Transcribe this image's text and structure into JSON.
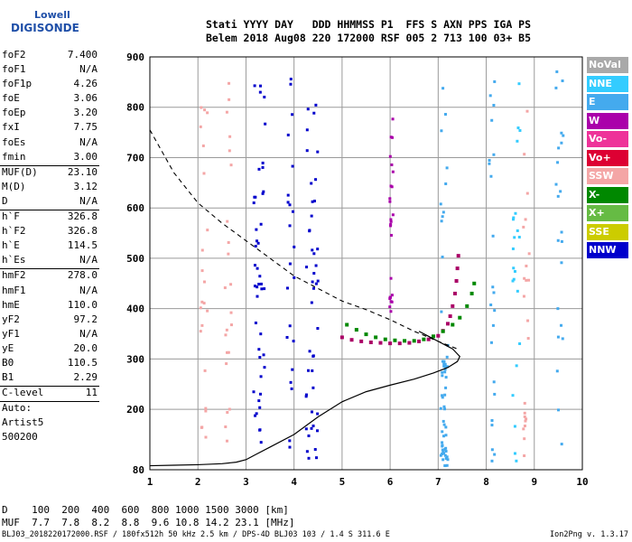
{
  "logo": {
    "line1": "Lowell",
    "line2": "DIGISONDE"
  },
  "header": {
    "line1": "Stati YYYY DAY   DDD HHMMSS P1  FFS S AXN PPS IGA PS",
    "line2": "Belem 2018 Aug08 220 172000 RSF 005 2 713 100 03+ B5"
  },
  "params": [
    {
      "label": "foF2",
      "value": "7.400",
      "sep": false
    },
    {
      "label": "foF1",
      "value": "N/A",
      "sep": false
    },
    {
      "label": "foF1p",
      "value": "4.26",
      "sep": false
    },
    {
      "label": "foE",
      "value": "3.06",
      "sep": false
    },
    {
      "label": "foEp",
      "value": "3.20",
      "sep": false
    },
    {
      "label": "fxI",
      "value": "7.75",
      "sep": false
    },
    {
      "label": "foEs",
      "value": "N/A",
      "sep": false
    },
    {
      "label": "fmin",
      "value": "3.00",
      "sep": true
    },
    {
      "label": "MUF(D)",
      "value": "23.10",
      "sep": false
    },
    {
      "label": "M(D)",
      "value": "3.12",
      "sep": false
    },
    {
      "label": "D",
      "value": "N/A",
      "sep": true
    },
    {
      "label": "h`F",
      "value": "326.8",
      "sep": false
    },
    {
      "label": "h`F2",
      "value": "326.8",
      "sep": false
    },
    {
      "label": "h`E",
      "value": "114.5",
      "sep": false
    },
    {
      "label": "h`Es",
      "value": "N/A",
      "sep": true
    },
    {
      "label": "hmF2",
      "value": "278.0",
      "sep": false
    },
    {
      "label": "hmF1",
      "value": "N/A",
      "sep": false
    },
    {
      "label": "hmE",
      "value": "110.0",
      "sep": false
    },
    {
      "label": "yF2",
      "value": "97.2",
      "sep": false
    },
    {
      "label": "yF1",
      "value": "N/A",
      "sep": false
    },
    {
      "label": "yE",
      "value": "20.0",
      "sep": false
    },
    {
      "label": "B0",
      "value": "110.5",
      "sep": false
    },
    {
      "label": "B1",
      "value": "2.29",
      "sep": true
    },
    {
      "label": "C-level",
      "value": "11",
      "sep": true
    },
    {
      "label": "Auto:",
      "value": "",
      "sep": false
    },
    {
      "label": "Artist5",
      "value": "",
      "sep": false
    },
    {
      "label": "500200",
      "value": "",
      "sep": false
    }
  ],
  "legend": [
    {
      "label": "NoVal",
      "color": "#a9a9a9"
    },
    {
      "label": "NNE",
      "color": "#33ccff"
    },
    {
      "label": "E",
      "color": "#44aaee"
    },
    {
      "label": "W",
      "color": "#aa00aa"
    },
    {
      "label": "Vo-",
      "color": "#ee3399"
    },
    {
      "label": "Vo+",
      "color": "#dd0033"
    },
    {
      "label": "SSW",
      "color": "#f4a6a6"
    },
    {
      "label": "X-",
      "color": "#008800"
    },
    {
      "label": "X+",
      "color": "#66bb44"
    },
    {
      "label": "SSE",
      "color": "#cccc00"
    },
    {
      "label": "NNW",
      "color": "#0000cc"
    }
  ],
  "bottom": {
    "line1": "D    100  200  400  600  800 1000 1500 3000 [km]",
    "line2": "MUF  7.7  7.8  8.2  8.8  9.6 10.8 14.2 23.1 [MHz]"
  },
  "footer": {
    "left": "BLJ03_2018220172000.RSF / 180fx512h 50 kHz 2.5 km / DPS-4D BLJ03 103 / 1.4 S 311.6 E",
    "right": "Ion2Png v. 1.3.17"
  },
  "chart_data": {
    "type": "scatter",
    "title": "",
    "xlabel": "",
    "ylabel": "",
    "xlim": [
      1,
      10
    ],
    "ylim": [
      80,
      900
    ],
    "x_ticks": [
      1,
      2,
      3,
      4,
      5,
      6,
      7,
      8,
      9,
      10
    ],
    "y_ticks": [
      80,
      200,
      300,
      400,
      500,
      600,
      700,
      800,
      900
    ],
    "grid": true,
    "series": [
      {
        "name": "O-trace (Vo-)",
        "color": "#aa0066",
        "points": [
          [
            5.0,
            343
          ],
          [
            5.2,
            338
          ],
          [
            5.4,
            335
          ],
          [
            5.6,
            333
          ],
          [
            5.8,
            332
          ],
          [
            6.0,
            331
          ],
          [
            6.2,
            331
          ],
          [
            6.4,
            332
          ],
          [
            6.6,
            335
          ],
          [
            6.8,
            339
          ],
          [
            7.0,
            346
          ],
          [
            7.1,
            356
          ],
          [
            7.2,
            370
          ],
          [
            7.25,
            385
          ],
          [
            7.3,
            405
          ],
          [
            7.35,
            430
          ],
          [
            7.38,
            455
          ],
          [
            7.4,
            480
          ],
          [
            7.42,
            505
          ]
        ]
      },
      {
        "name": "X-trace (X-)",
        "color": "#008800",
        "points": [
          [
            5.1,
            368
          ],
          [
            5.3,
            358
          ],
          [
            5.5,
            349
          ],
          [
            5.7,
            343
          ],
          [
            5.9,
            339
          ],
          [
            6.1,
            337
          ],
          [
            6.3,
            336
          ],
          [
            6.5,
            336
          ],
          [
            6.7,
            339
          ],
          [
            6.9,
            345
          ],
          [
            7.1,
            355
          ],
          [
            7.3,
            368
          ],
          [
            7.45,
            382
          ],
          [
            7.6,
            405
          ],
          [
            7.7,
            430
          ],
          [
            7.75,
            450
          ]
        ]
      }
    ],
    "profile_curve": [
      [
        1.0,
        88
      ],
      [
        1.5,
        89
      ],
      [
        2.0,
        90
      ],
      [
        2.5,
        92
      ],
      [
        2.8,
        95
      ],
      [
        3.0,
        100
      ],
      [
        3.2,
        110
      ],
      [
        3.5,
        125
      ],
      [
        4.0,
        150
      ],
      [
        4.5,
        185
      ],
      [
        5.0,
        215
      ],
      [
        5.5,
        235
      ],
      [
        6.0,
        248
      ],
      [
        6.5,
        260
      ],
      [
        6.9,
        272
      ],
      [
        7.2,
        283
      ],
      [
        7.4,
        295
      ],
      [
        7.45,
        305
      ],
      [
        7.3,
        320
      ],
      [
        7.0,
        335
      ],
      [
        6.8,
        345
      ],
      [
        6.6,
        355
      ]
    ],
    "muf_curve": [
      [
        1.0,
        755
      ],
      [
        1.5,
        670
      ],
      [
        2.0,
        610
      ],
      [
        2.5,
        570
      ],
      [
        3.0,
        535
      ],
      [
        3.5,
        500
      ],
      [
        4.0,
        465
      ],
      [
        4.5,
        440
      ],
      [
        5.0,
        415
      ],
      [
        5.5,
        398
      ],
      [
        6.0,
        378
      ],
      [
        6.5,
        355
      ],
      [
        7.0,
        335
      ],
      [
        7.4,
        320
      ]
    ]
  }
}
